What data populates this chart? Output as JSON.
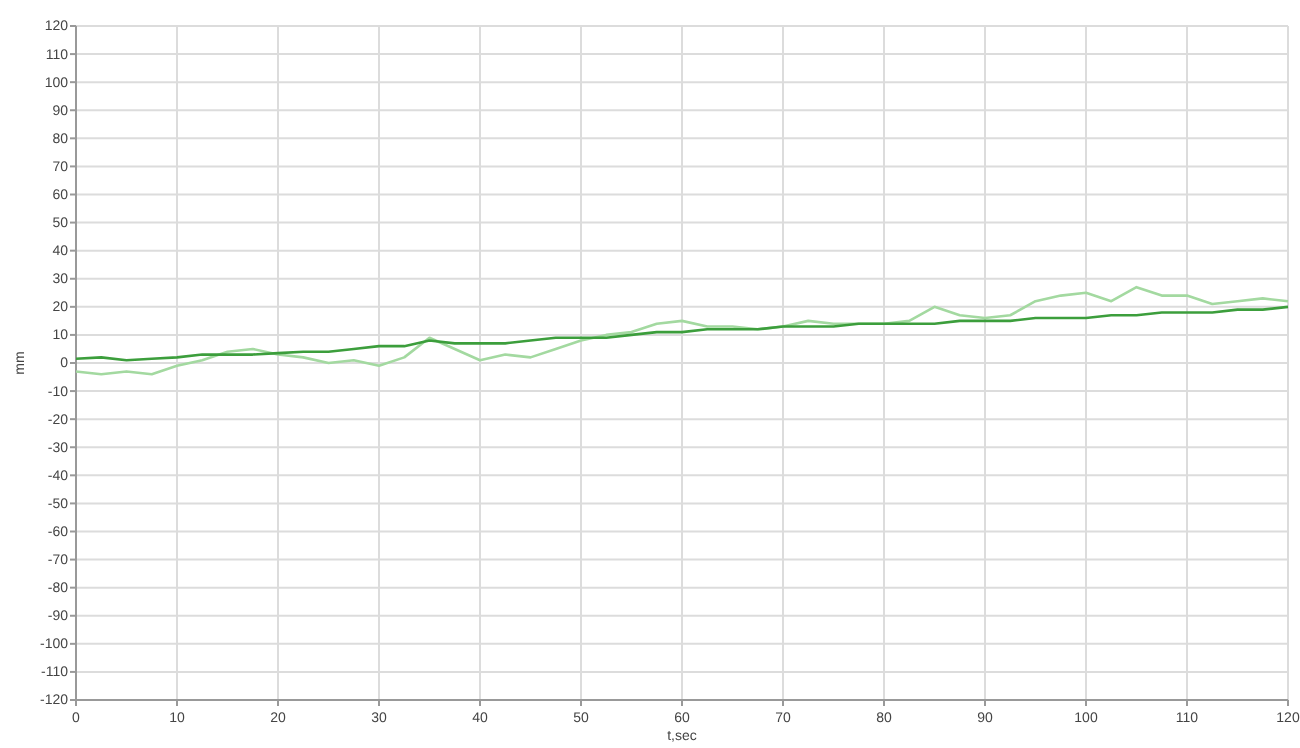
{
  "chart_data": {
    "type": "line",
    "xlabel": "t,sec",
    "ylabel": "mm",
    "x": [
      0,
      2.5,
      5,
      7.5,
      10,
      12.5,
      15,
      17.5,
      20,
      22.5,
      25,
      27.5,
      30,
      32.5,
      35,
      37.5,
      40,
      42.5,
      45,
      47.5,
      50,
      52.5,
      55,
      57.5,
      60,
      62.5,
      65,
      67.5,
      70,
      72.5,
      75,
      77.5,
      80,
      82.5,
      85,
      87.5,
      90,
      92.5,
      95,
      97.5,
      100,
      102.5,
      105,
      107.5,
      110,
      112.5,
      115,
      117.5,
      120
    ],
    "series": [
      {
        "color": "#a3d9a0",
        "values": [
          -3,
          -4,
          -3,
          -4,
          -1,
          1,
          4,
          5,
          3,
          2,
          0,
          1,
          -1,
          2,
          9,
          5,
          1,
          3,
          2,
          5,
          8,
          10,
          11,
          14,
          15,
          13,
          13,
          12,
          13,
          15,
          14,
          14,
          14,
          15,
          20,
          17,
          16,
          17,
          22,
          24,
          25,
          22,
          27,
          24,
          24,
          21,
          22,
          23,
          22
        ]
      },
      {
        "color": "#3c9e3c",
        "values": [
          1.5,
          2,
          1,
          1.5,
          2,
          3,
          3,
          3,
          3.5,
          4,
          4,
          5,
          6,
          6,
          8,
          7,
          7,
          7,
          8,
          9,
          9,
          9,
          10,
          11,
          11,
          12,
          12,
          12,
          13,
          13,
          13,
          14,
          14,
          14,
          14,
          15,
          15,
          15,
          16,
          16,
          16,
          17,
          17,
          18,
          18,
          18,
          19,
          19,
          20
        ]
      }
    ],
    "xlim": [
      0,
      120
    ],
    "xticks": [
      0,
      10,
      20,
      30,
      40,
      50,
      60,
      70,
      80,
      90,
      100,
      110,
      120
    ],
    "ylim": [
      -120,
      120
    ],
    "yticks": [
      -120,
      -110,
      -100,
      -90,
      -80,
      -70,
      -60,
      -50,
      -40,
      -30,
      -20,
      -10,
      0,
      10,
      20,
      30,
      40,
      50,
      60,
      70,
      80,
      90,
      100,
      110,
      120
    ],
    "grid": true,
    "marker": "none",
    "line_style": "solid"
  }
}
